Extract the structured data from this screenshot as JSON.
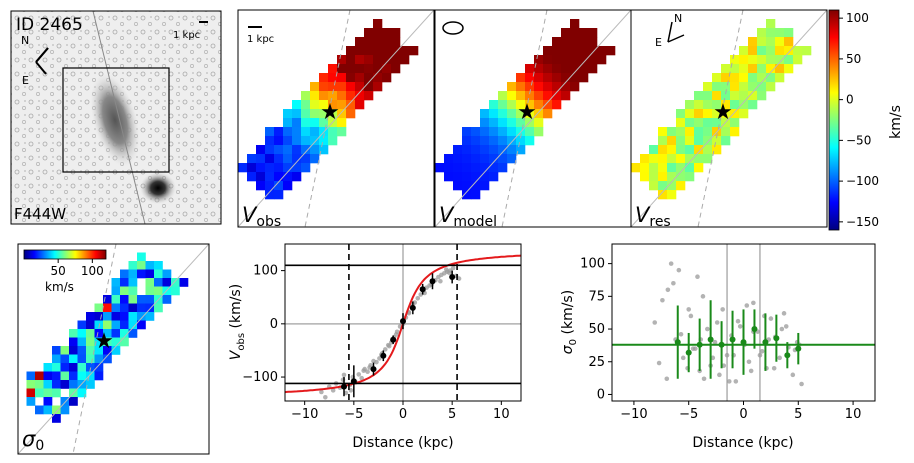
{
  "panels": {
    "image": {
      "id_label": "ID 2465",
      "band_label": "F444W",
      "scale_label": "1 kpc",
      "north": "N",
      "east": "E"
    },
    "vobs": {
      "label_main": "V",
      "label_sub": "obs",
      "scale_label": "1 kpc"
    },
    "vmodel": {
      "label_main": "V",
      "label_sub": "model"
    },
    "vres": {
      "label_main": "V",
      "label_sub": "res",
      "north": "N",
      "east": "E"
    },
    "sigma": {
      "label_main": "σ",
      "label_sub": "0"
    }
  },
  "colors": {
    "red_curve": "#e41a1c",
    "green": "#1a8a1a",
    "points_gray": "#999999",
    "frame": "#000000"
  },
  "chart_data": [
    {
      "type": "heatmap",
      "title": "velocity colorbar",
      "ylabel": "km/s",
      "ylim": [
        -160,
        110
      ],
      "ticks": [
        "100",
        "50",
        "0",
        "−50",
        "−100",
        "−150"
      ],
      "tick_values": [
        100,
        50,
        0,
        -50,
        -100,
        -150
      ]
    },
    {
      "type": "heatmap",
      "title": "sigma colorbar",
      "xlabel": "km/s",
      "ylim": [
        0,
        120
      ],
      "ticks": [
        "50",
        "100"
      ],
      "tick_values": [
        50,
        100
      ]
    },
    {
      "type": "scatter",
      "title": "rotation curve",
      "xlabel": "Distance (kpc)",
      "ylabel_main": "V",
      "ylabel_sub": "obs",
      "ylabel_unit": " (km/s)",
      "xlim": [
        -12,
        12
      ],
      "ylim": [
        -145,
        150
      ],
      "xticks": [
        -10,
        -5,
        0,
        5,
        10
      ],
      "xtick_labels": [
        "−10",
        "−5",
        "0",
        "5",
        "10"
      ],
      "yticks": [
        -100,
        0,
        100
      ],
      "ytick_labels": [
        "−100",
        "0",
        "100"
      ],
      "hlines": [
        110,
        -112
      ],
      "vlines_dashed": [
        -5.5,
        5.5
      ],
      "vlines_gray": [
        0
      ],
      "hline_gray": [
        0
      ],
      "model": {
        "vmax": 140,
        "rt": 1.6
      },
      "binned": {
        "x": [
          -6,
          -5,
          -3,
          -2,
          -1,
          0,
          1,
          2,
          3,
          5
        ],
        "y": [
          -118,
          -108,
          -85,
          -60,
          -30,
          5,
          30,
          65,
          80,
          88
        ],
        "err": [
          18,
          30,
          12,
          10,
          8,
          15,
          12,
          10,
          15,
          12
        ]
      },
      "raw": {
        "x": [
          -8.3,
          -7.5,
          -7.1,
          -6.8,
          -6.4,
          -6.1,
          -5.8,
          -5.4,
          -5.1,
          -4.8,
          -4.5,
          -4.2,
          -3.9,
          -3.6,
          -3.3,
          -3.0,
          -2.7,
          -2.4,
          -2.1,
          -1.8,
          -1.5,
          -1.2,
          -0.9,
          -0.6,
          -0.3,
          0.0,
          0.3,
          0.6,
          0.9,
          1.2,
          1.5,
          1.8,
          2.1,
          2.4,
          2.7,
          3.0,
          3.3,
          3.6,
          3.9,
          4.2,
          4.5,
          4.8,
          5.1,
          5.4,
          5.7,
          -7.9,
          -6.0,
          -4.0,
          -2.2,
          -0.7,
          0.6,
          2.2,
          3.8,
          4.7,
          -5.3,
          -3.4,
          -1.4,
          1.0,
          2.9,
          4.4
        ],
        "y": [
          -128,
          -118,
          -125,
          -112,
          -120,
          -105,
          -130,
          -115,
          -100,
          -110,
          -95,
          -102,
          -85,
          -90,
          -78,
          -70,
          -72,
          -65,
          -55,
          -48,
          -40,
          -35,
          -25,
          -15,
          -5,
          0,
          12,
          20,
          32,
          40,
          48,
          55,
          62,
          68,
          72,
          78,
          82,
          88,
          92,
          95,
          98,
          100,
          105,
          90,
          85,
          -138,
          -96,
          -88,
          -58,
          -20,
          22,
          58,
          80,
          96,
          -125,
          -82,
          -42,
          38,
          74,
          102
        ]
      }
    },
    {
      "type": "scatter",
      "title": "dispersion profile",
      "xlabel": "Distance (kpc)",
      "ylabel_main": "σ",
      "ylabel_sub": "0",
      "ylabel_unit": " (km/s)",
      "xlim": [
        -12,
        12
      ],
      "ylim": [
        -5,
        115
      ],
      "xticks": [
        -10,
        -5,
        0,
        5,
        10
      ],
      "xtick_labels": [
        "−10",
        "−5",
        "0",
        "5",
        "10"
      ],
      "yticks": [
        0,
        25,
        50,
        75,
        100
      ],
      "ytick_labels": [
        "0",
        "25",
        "50",
        "75",
        "100"
      ],
      "hline": 38,
      "vlines_gray": [
        -1.5,
        1.5
      ],
      "binned": {
        "x": [
          -6,
          -5,
          -4,
          -3,
          -2,
          -1,
          0,
          1,
          2,
          3,
          4,
          5
        ],
        "y": [
          40,
          32,
          38,
          42,
          38,
          42,
          40,
          50,
          40,
          43,
          30,
          35
        ],
        "err": [
          28,
          15,
          20,
          30,
          18,
          22,
          25,
          15,
          22,
          18,
          10,
          12
        ]
      },
      "raw": {
        "x": [
          -8.1,
          -7.4,
          -7.0,
          -6.6,
          -6.2,
          -5.9,
          -5.5,
          -5.1,
          -4.8,
          -4.4,
          -4.0,
          -3.7,
          -3.3,
          -3.0,
          -2.6,
          -2.2,
          -1.9,
          -1.5,
          -1.1,
          -0.7,
          -0.3,
          0.1,
          0.5,
          0.9,
          1.3,
          1.7,
          2.1,
          2.5,
          2.9,
          3.3,
          3.7,
          4.1,
          4.5,
          4.9,
          5.3,
          -6.4,
          -5.0,
          -3.6,
          -2.4,
          -0.9,
          0.7,
          2.3,
          3.9,
          -7.7,
          -4.2,
          -1.3,
          1.9,
          4.7,
          -5.7,
          -2.8,
          0.3,
          2.8,
          5.1,
          -6.9,
          -3.9,
          -0.5,
          1.5,
          3.5,
          -4.6,
          -1.8,
          0.9
        ],
        "y": [
          55,
          72,
          12,
          100,
          42,
          95,
          28,
          20,
          60,
          35,
          18,
          75,
          50,
          22,
          40,
          15,
          65,
          30,
          45,
          10,
          52,
          38,
          25,
          70,
          48,
          33,
          20,
          58,
          44,
          28,
          62,
          36,
          15,
          40,
          8,
          85,
          65,
          12,
          55,
          30,
          18,
          42,
          52,
          24,
          90,
          10,
          60,
          34,
          46,
          28,
          68,
          20,
          38,
          80,
          42,
          56,
          30,
          50,
          35,
          22,
          48
        ]
      }
    }
  ]
}
